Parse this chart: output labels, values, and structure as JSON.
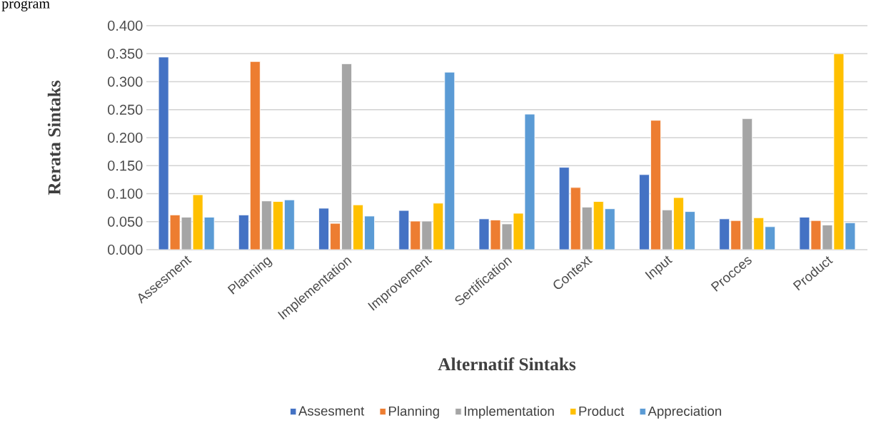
{
  "chart_data": {
    "type": "bar",
    "annotations": [
      "program"
    ],
    "xlabel": "Alternatif Sintaks",
    "ylabel": "Rerata Sintaks",
    "categories": [
      "Assesment",
      "Planning",
      "Implementation",
      "Improvement",
      "Sertification",
      "Context",
      "Input",
      "Procces",
      "Product"
    ],
    "series": [
      {
        "name": "Assesment",
        "color": "#4472c4",
        "values": [
          0.344,
          0.062,
          0.074,
          0.07,
          0.055,
          0.147,
          0.134,
          0.055,
          0.058
        ]
      },
      {
        "name": "Planning",
        "color": "#ed7d31",
        "values": [
          0.062,
          0.336,
          0.047,
          0.051,
          0.053,
          0.111,
          0.231,
          0.052,
          0.052
        ]
      },
      {
        "name": "Implementation",
        "color": "#a5a5a5",
        "values": [
          0.058,
          0.087,
          0.332,
          0.051,
          0.046,
          0.076,
          0.071,
          0.234,
          0.044
        ]
      },
      {
        "name": "Product",
        "color": "#ffc000",
        "values": [
          0.098,
          0.086,
          0.08,
          0.083,
          0.065,
          0.086,
          0.093,
          0.057,
          0.35
        ]
      },
      {
        "name": "Appreciation",
        "color": "#5b9bd5",
        "values": [
          0.058,
          0.089,
          0.06,
          0.317,
          0.242,
          0.073,
          0.068,
          0.041,
          0.048
        ]
      }
    ],
    "ylim": [
      0,
      0.4
    ],
    "yticks": [
      {
        "value": 0,
        "label": "0.000"
      },
      {
        "value": 0.05,
        "label": "0.050"
      },
      {
        "value": 0.1,
        "label": "0.100"
      },
      {
        "value": 0.15,
        "label": "0.150"
      },
      {
        "value": 0.2,
        "label": "0.200"
      },
      {
        "value": 0.25,
        "label": "0.250"
      },
      {
        "value": 0.3,
        "label": "0.300"
      },
      {
        "value": 0.35,
        "label": "0.350"
      },
      {
        "value": 0.4,
        "label": "0.400"
      }
    ],
    "grid": "y",
    "legend": "bottom"
  }
}
